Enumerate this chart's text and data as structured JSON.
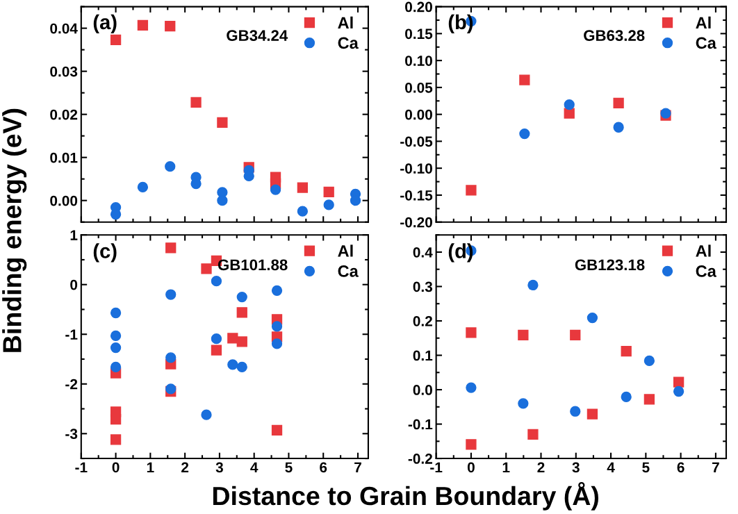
{
  "chart_data": [
    {
      "type": "scatter",
      "ylabel": "Binding energy (eV)",
      "annotations": [
        "(a)",
        "GB34.24"
      ],
      "xlim": [
        -1,
        7.3
      ],
      "xticks": [
        -1,
        0,
        1,
        2,
        3,
        4,
        5,
        6,
        7
      ],
      "ylim": [
        -0.005,
        0.045
      ],
      "yticks": [
        {
          "value": 0,
          "label": "0.00"
        },
        0.01,
        0.02,
        0.03,
        0.04
      ],
      "tick_labels": "y",
      "legend": "top right",
      "grid": false,
      "series": [
        {
          "name": "Al",
          "color": "#e8383d",
          "marker": "square",
          "x": [
            0,
            0.78,
            1.57,
            2.32,
            3.08,
            3.85,
            4.62,
            4.62,
            5.4,
            6.16
          ],
          "values": [
            0.0373,
            0.0407,
            0.0405,
            0.0228,
            0.0181,
            0.0077,
            0.0054,
            0.0039,
            0.003,
            0.002
          ]
        },
        {
          "name": "Ca",
          "color": "#1a6fdc",
          "marker": "circle",
          "x": [
            0,
            0,
            0.78,
            1.57,
            2.32,
            2.32,
            3.08,
            3.08,
            3.85,
            3.85,
            4.62,
            5.4,
            6.16,
            6.93,
            6.93
          ],
          "values": [
            -0.0016,
            -0.0032,
            0.0031,
            0.0079,
            0.0054,
            0.0039,
            0.0019,
            0.0,
            0.007,
            0.0057,
            0.0025,
            -0.0025,
            -0.001,
            0.0015,
            0.0
          ]
        }
      ]
    },
    {
      "type": "scatter",
      "annotations": [
        "(b)",
        "GB63.28"
      ],
      "xlim": [
        -1,
        7.3
      ],
      "xticks": [
        -1,
        0,
        1,
        2,
        3,
        4,
        5,
        6,
        7
      ],
      "ylim": [
        -0.2,
        0.2
      ],
      "yticks": [
        {
          "value": -0.2,
          "label": "-0.20"
        },
        -0.15,
        {
          "value": -0.1,
          "label": "-0.10"
        },
        -0.05,
        {
          "value": 0,
          "label": "0.00"
        },
        0.05,
        {
          "value": 0.1,
          "label": "0.10"
        },
        0.15,
        {
          "value": 0.2,
          "label": "0.20"
        }
      ],
      "tick_labels": "y",
      "legend": "top right",
      "grid": false,
      "series": [
        {
          "name": "Al",
          "color": "#e8383d",
          "marker": "square",
          "x": [
            0,
            1.53,
            2.81,
            4.22,
            5.57
          ],
          "values": [
            -0.141,
            0.064,
            0.002,
            0.021,
            -0.002
          ]
        },
        {
          "name": "Ca",
          "color": "#1a6fdc",
          "marker": "circle",
          "x": [
            0,
            1.53,
            2.81,
            4.22,
            5.57
          ],
          "values": [
            0.173,
            -0.036,
            0.018,
            -0.024,
            0.002
          ]
        }
      ]
    },
    {
      "type": "scatter",
      "xlabel": "Distance to Grain Boundary (Å)",
      "annotations": [
        "(c)",
        "GB101.88"
      ],
      "xlim": [
        -1,
        7.3
      ],
      "xticks": [
        -1,
        0,
        1,
        2,
        3,
        4,
        5,
        6,
        7
      ],
      "ylim": [
        -3.5,
        1
      ],
      "yticks": [
        -3,
        -2,
        -1,
        0,
        1
      ],
      "legend": "top right",
      "grid": false,
      "series": [
        {
          "name": "Al",
          "color": "#e8383d",
          "marker": "square",
          "x": [
            0,
            0,
            0,
            0,
            1.59,
            1.59,
            1.59,
            2.62,
            2.91,
            2.91,
            3.38,
            3.65,
            3.65,
            4.66,
            4.66,
            4.66
          ],
          "values": [
            -1.78,
            -2.56,
            -2.71,
            -3.12,
            0.74,
            -1.6,
            -2.15,
            0.32,
            0.48,
            -1.32,
            -1.08,
            -1.15,
            -0.56,
            -0.7,
            -1.05,
            -2.93
          ]
        },
        {
          "name": "Ca",
          "color": "#1a6fdc",
          "marker": "circle",
          "x": [
            0,
            0,
            0,
            0,
            1.59,
            1.59,
            1.59,
            2.62,
            2.91,
            2.91,
            3.38,
            3.65,
            3.65,
            4.66,
            4.66,
            4.66
          ],
          "values": [
            -0.57,
            -1.03,
            -1.27,
            -1.66,
            -0.2,
            -1.47,
            -2.1,
            -2.62,
            0.07,
            -1.09,
            -1.61,
            -0.25,
            -1.66,
            -0.12,
            -0.84,
            -1.19
          ]
        }
      ]
    },
    {
      "type": "scatter",
      "annotations": [
        "(d)",
        "GB123.18"
      ],
      "xlim": [
        -1,
        7.3
      ],
      "xticks": [
        -1,
        0,
        1,
        2,
        3,
        4,
        5,
        6,
        7
      ],
      "ylim": [
        -0.2,
        0.45
      ],
      "yticks": [
        -0.2,
        -0.1,
        {
          "value": 0,
          "label": "0.0"
        },
        0.1,
        0.2,
        0.3,
        0.4
      ],
      "legend": "top right",
      "grid": false,
      "series": [
        {
          "name": "Al",
          "color": "#e8383d",
          "marker": "square",
          "x": [
            0,
            0,
            1.49,
            1.77,
            2.98,
            3.47,
            4.44,
            5.1,
            5.94
          ],
          "values": [
            0.166,
            -0.159,
            0.159,
            -0.13,
            0.159,
            -0.071,
            0.112,
            -0.028,
            0.022
          ]
        },
        {
          "name": "Ca",
          "color": "#1a6fdc",
          "marker": "circle",
          "x": [
            0,
            0,
            1.49,
            1.77,
            2.98,
            3.47,
            4.44,
            5.1,
            5.94
          ],
          "values": [
            0.404,
            0.006,
            -0.04,
            0.304,
            -0.063,
            0.209,
            -0.021,
            0.084,
            -0.005
          ]
        }
      ]
    }
  ]
}
